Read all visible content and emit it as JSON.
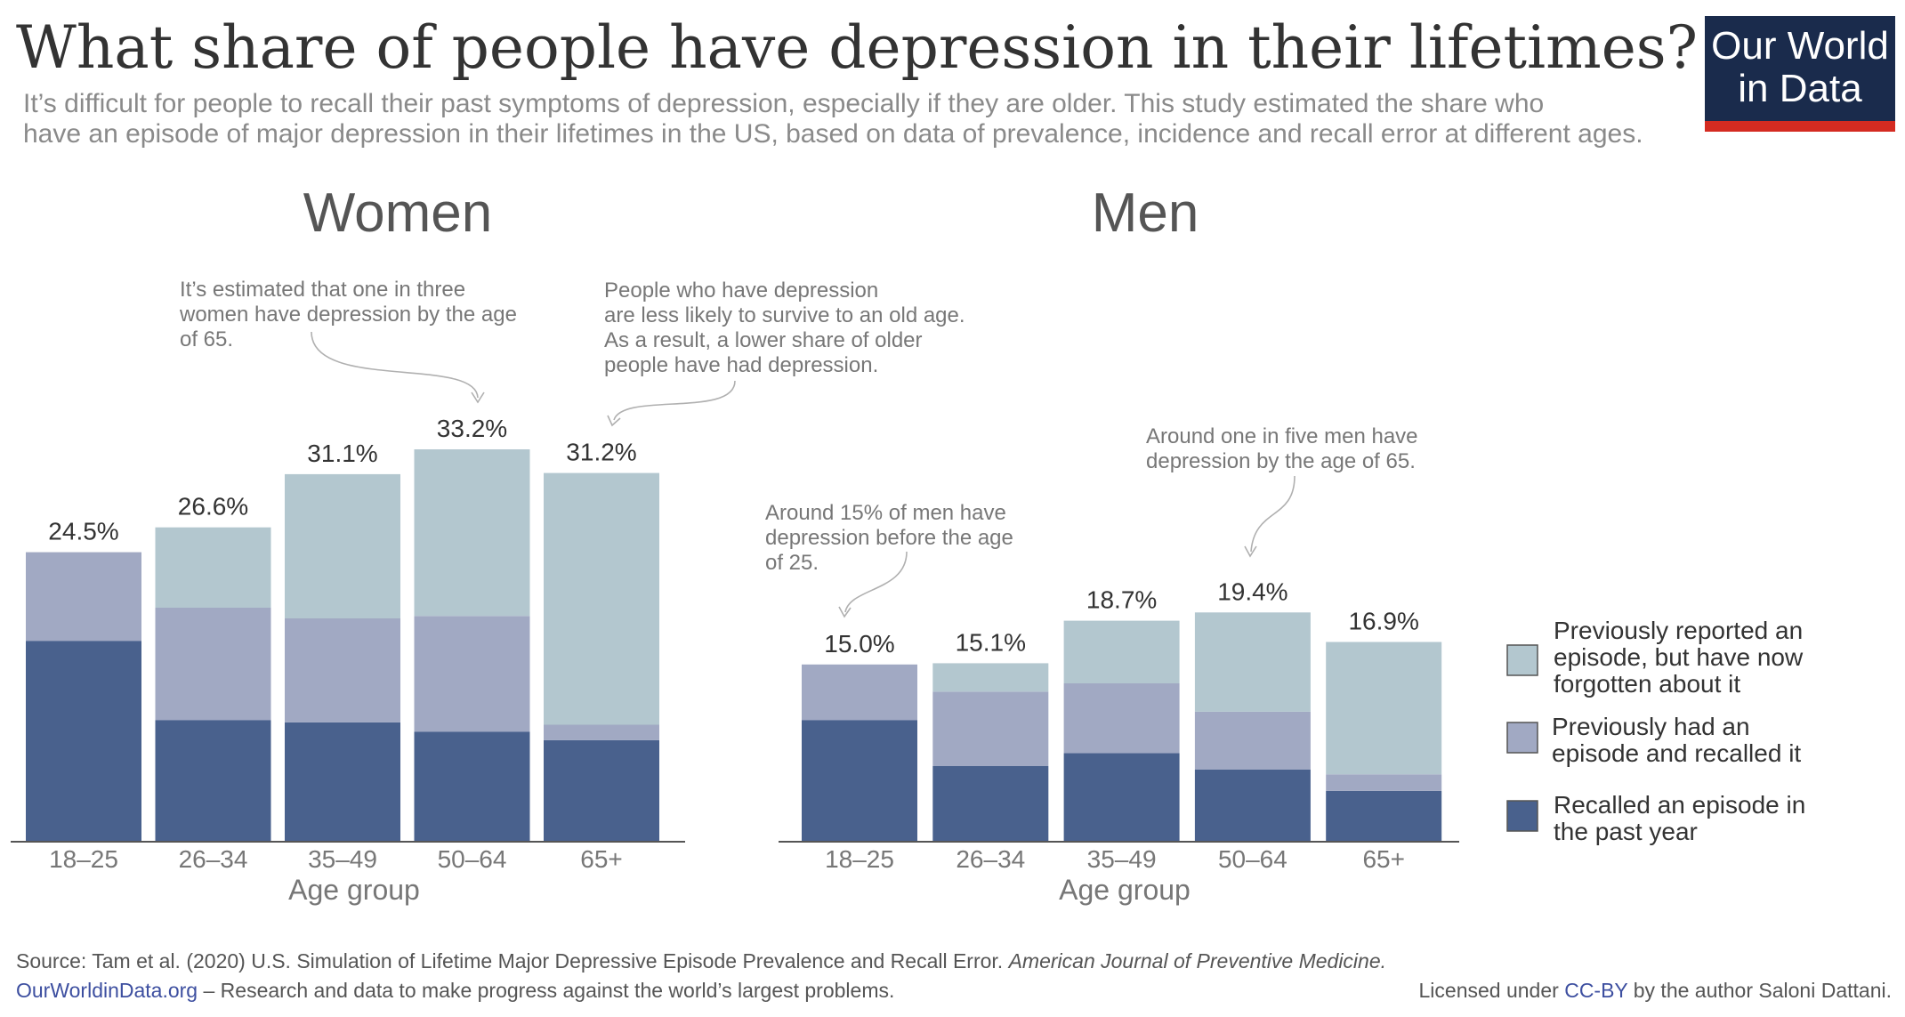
{
  "header": {
    "title": "What share of people have depression in their lifetimes?",
    "subtitle_line1": "It’s difficult for people to recall their past symptoms of depression, especially if they are older. This study estimated the share who",
    "subtitle_line2": "have an episode of major depression in their lifetimes in the US, based on data of prevalence, incidence and recall error at different ages."
  },
  "logo": {
    "line1": "Our World",
    "line2": "in Data",
    "bg_color": "#1a2b4c",
    "accent_color": "#d42b21"
  },
  "colors": {
    "forgotten": "#b3c7cf",
    "recalled_previous": "#a1a9c3",
    "recalled_past_year": "#49618d",
    "annotation_text": "#777777",
    "axis_text": "#777777",
    "heading_text": "#555555"
  },
  "legend": {
    "items": [
      {
        "key": "forgotten",
        "line1": "Previously reported an",
        "line2": "episode, but have now",
        "line3": "forgotten about it"
      },
      {
        "key": "recalled_previous",
        "line1": "Previously had an",
        "line2": "episode and recalled it"
      },
      {
        "key": "recalled_past_year",
        "line1": "Recalled an episode in",
        "line2": "the past year"
      }
    ]
  },
  "chart_data": [
    {
      "type": "bar",
      "stacked": true,
      "title": "Women",
      "xlabel": "Age group",
      "ylabel": "",
      "ylim": [
        0,
        33.2
      ],
      "categories": [
        "18–25",
        "26–34",
        "35–49",
        "50–64",
        "65+"
      ],
      "series": [
        {
          "name": "Recalled an episode in the past year",
          "key": "recalled_past_year",
          "values": [
            17.0,
            10.3,
            10.1,
            9.3,
            8.6
          ]
        },
        {
          "name": "Previously had an episode and recalled it",
          "key": "recalled_previous",
          "values": [
            7.5,
            9.5,
            8.8,
            9.8,
            1.3
          ]
        },
        {
          "name": "Previously reported an episode, but have now forgotten about it",
          "key": "forgotten",
          "values": [
            0.0,
            6.8,
            12.2,
            14.1,
            21.3
          ]
        }
      ],
      "totals": [
        "24.5%",
        "26.6%",
        "31.1%",
        "33.2%",
        "31.2%"
      ],
      "annotations": [
        {
          "line1": "It’s estimated that one in three",
          "line2": "women have depression by the age",
          "line3": "of 65."
        },
        {
          "line1": "People who have depression",
          "line2": "are less likely to survive to an old age.",
          "line3": "As a result, a lower share of older",
          "line4": "people have had depression."
        }
      ]
    },
    {
      "type": "bar",
      "stacked": true,
      "title": "Men",
      "xlabel": "Age group",
      "ylabel": "",
      "ylim": [
        0,
        33.2
      ],
      "categories": [
        "18–25",
        "26–34",
        "35–49",
        "50–64",
        "65+"
      ],
      "series": [
        {
          "name": "Recalled an episode in the past year",
          "key": "recalled_past_year",
          "values": [
            10.3,
            6.4,
            7.5,
            6.1,
            4.3
          ]
        },
        {
          "name": "Previously had an episode and recalled it",
          "key": "recalled_previous",
          "values": [
            4.7,
            6.3,
            5.9,
            4.9,
            1.4
          ]
        },
        {
          "name": "Previously reported an episode, but have now forgotten about it",
          "key": "forgotten",
          "values": [
            0.0,
            2.4,
            5.3,
            8.4,
            11.2
          ]
        }
      ],
      "totals": [
        "15.0%",
        "15.1%",
        "18.7%",
        "19.4%",
        "16.9%"
      ],
      "annotations": [
        {
          "line1": "Around 15% of men have",
          "line2": "depression before the age",
          "line3": "of 25."
        },
        {
          "line1": "Around one in five men have",
          "line2": "depression by the age of 65."
        }
      ]
    }
  ],
  "footer": {
    "source_prefix": "Source: Tam et al. (2020) U.S. Simulation of Lifetime Major Depressive Episode Prevalence and Recall Error. ",
    "source_journal": "American Journal of Preventive Medicine.",
    "site_link": "OurWorldinData.org",
    "site_tagline": " – Research and data to make progress against the world’s largest problems.",
    "license_prefix": "Licensed under ",
    "license_link": "CC-BY",
    "license_suffix": " by the author Saloni Dattani.",
    "link_color": "#3d4fa0"
  }
}
